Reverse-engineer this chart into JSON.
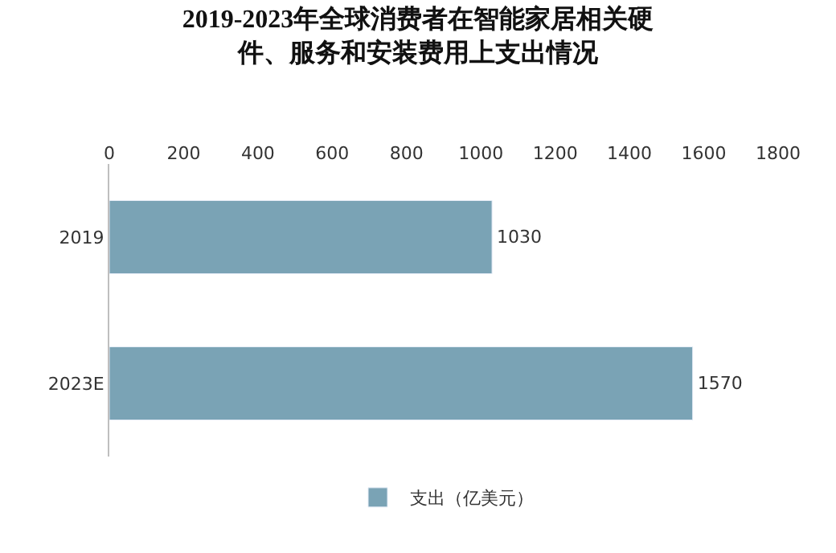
{
  "chart_data": {
    "type": "bar",
    "orientation": "horizontal",
    "title": "2019-2023年全球消费者在智能家居相关硬件、服务和安装费用上支出情况",
    "categories": [
      "2019",
      "2023E"
    ],
    "series": [
      {
        "name": "支出（亿美元）",
        "color": "#7aa3b5",
        "values": [
          1030,
          1570
        ]
      }
    ],
    "xlim": [
      0,
      1800
    ],
    "xticks": [
      0,
      200,
      400,
      600,
      800,
      1000,
      1200,
      1400,
      1600,
      1800
    ],
    "data_labels": true,
    "legend": "bottom"
  }
}
